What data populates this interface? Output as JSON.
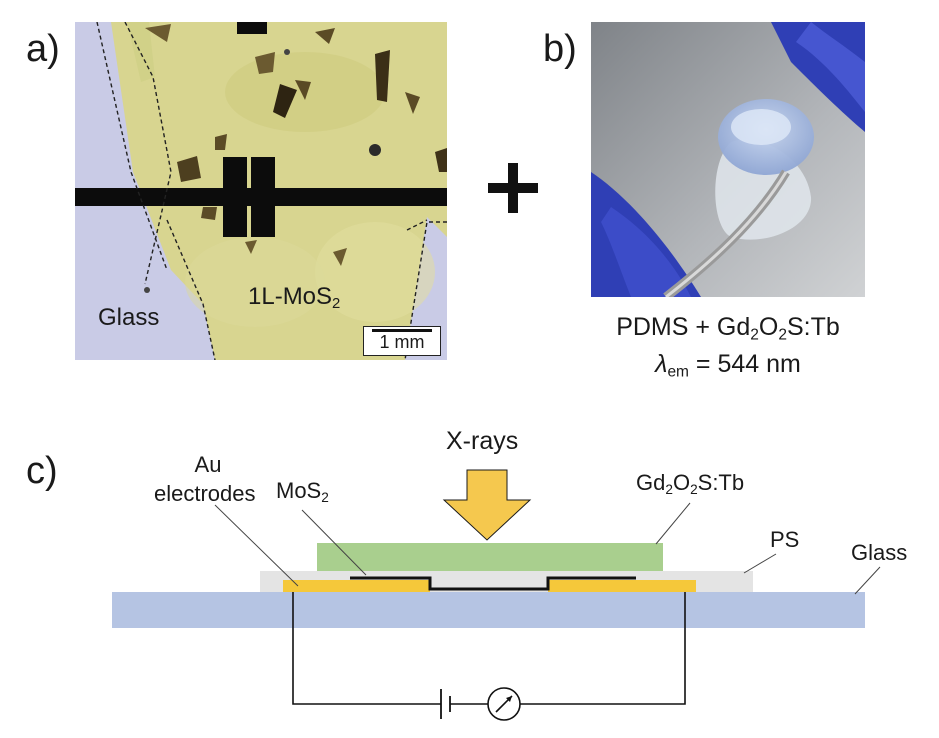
{
  "panel_a": {
    "label": "a)",
    "region_glass": "Glass",
    "region_mos2_prefix": "1L-MoS",
    "region_mos2_sub": "2",
    "scale_bar": "1 mm"
  },
  "panel_b": {
    "label": "b)",
    "material_prefix": "PDMS + Gd",
    "material_sub1": "2",
    "material_mid": "O",
    "material_sub2": "2",
    "material_suffix": "S:Tb",
    "lambda_symbol": "λ",
    "lambda_sub": "em",
    "lambda_value": " = 544 nm"
  },
  "panel_c": {
    "label": "c)",
    "xrays": "X-rays",
    "au_line1": "Au",
    "au_line2": "electrodes",
    "mos2_prefix": "MoS",
    "mos2_sub": "2",
    "scint_prefix": "Gd",
    "scint_sub1": "2",
    "scint_mid": "O",
    "scint_sub2": "2",
    "scint_suffix": "S:Tb",
    "ps": "PS",
    "glass": "Glass"
  },
  "colors": {
    "glass": "#b5c4e3",
    "ps": "#e4e4e4",
    "scintillator": "#a9cf8e",
    "gold": "#f5c83a",
    "arrow": "#f5c84e",
    "mos2_film": "#d8d590",
    "glove": "#2f3fb5"
  }
}
